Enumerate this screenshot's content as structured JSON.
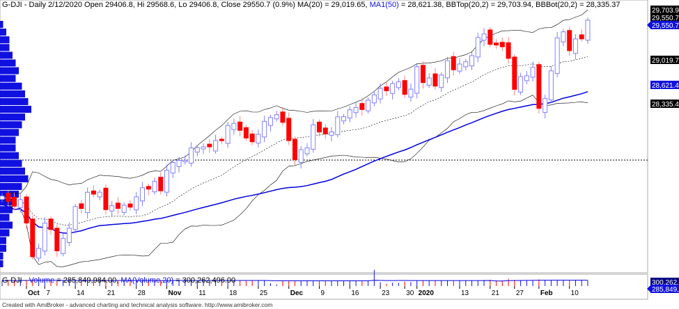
{
  "header": {
    "symbol": "G-DJI",
    "sep": " - ",
    "period": "Daily",
    "date": "2/12/2020",
    "open_label": "Open",
    "open": "29406.8",
    "hi_label": "Hi",
    "hi": "29568.6",
    "lo_label": "Lo",
    "lo": "29406.8",
    "close_label": "Close",
    "close": "29550.7",
    "change": "(0.9%)",
    "ma20": "MA(20) = 29,019.65,",
    "ma50": "MA1(50)",
    "ma50_val": "= 28,621.38,",
    "bbtop": "BBTop(20,2) = 29,703.94,",
    "bbbot": "BBBot(20,2) = 28,335.37"
  },
  "axis_labels": {
    "bbtop": "29,703.9",
    "close_dup": "29,550.7",
    "close": "29,550.7",
    "ma20": "29,019.7",
    "ma50": "28,621.4",
    "bbbot": "28,335.4"
  },
  "volume_header": {
    "symbol": "G-DJI",
    "sep": " - ",
    "volume_label": "Volume",
    "volume": "= 285,849,984.00,",
    "ma_label": "MA(Volume,20)",
    "ma": "= 300,262,496.00"
  },
  "volume_axis": {
    "ma": "300,262,496",
    "volume": "285,849,984"
  },
  "date_labels": [
    {
      "t": "Oct",
      "b": true,
      "i": 4
    },
    {
      "t": "7",
      "i": 7
    },
    {
      "t": "14",
      "i": 12
    },
    {
      "t": "21",
      "i": 17
    },
    {
      "t": "28",
      "i": 22
    },
    {
      "t": "Nov",
      "b": true,
      "i": 27
    },
    {
      "t": "11",
      "i": 32
    },
    {
      "t": "18",
      "i": 37
    },
    {
      "t": "25",
      "i": 42
    },
    {
      "t": "Dec",
      "b": true,
      "i": 47
    },
    {
      "t": "9",
      "i": 52
    },
    {
      "t": "16",
      "i": 57
    },
    {
      "t": "23",
      "i": 62
    },
    {
      "t": "30",
      "i": 66
    },
    {
      "t": "2020",
      "b": true,
      "i": 68
    },
    {
      "t": "13",
      "i": 75
    },
    {
      "t": "21",
      "i": 80
    },
    {
      "t": "27",
      "i": 84
    },
    {
      "t": "Feb",
      "b": true,
      "i": 88
    },
    {
      "t": "10",
      "i": 93
    }
  ],
  "footer": "Created with AmiBroker - advanced charting and technical analysis software. http://www.amibroker.com",
  "colors": {
    "up": "#1010e0",
    "down": "#ff0000",
    "ma50": "#0000e0",
    "bands": "#000000"
  },
  "chart_data": {
    "type": "candlestick",
    "closes": [
      26970,
      26891,
      26820,
      26917,
      26573,
      26079,
      26201,
      26573,
      26478,
      26165,
      26347,
      26497,
      26816,
      26787,
      27025,
      26997,
      27026,
      26770,
      26827,
      26788,
      26834,
      26806,
      26958,
      27091,
      27071,
      27186,
      27046,
      27347,
      27462,
      27492,
      27493,
      27675,
      27681,
      27691,
      27691,
      27784,
      27782,
      28005,
      28036,
      27934,
      27821,
      27766,
      27876,
      28066,
      28122,
      28164,
      28051,
      27783,
      27503,
      27650,
      27677,
      28015,
      27909,
      27882,
      27911,
      28132,
      28135,
      28235,
      28268,
      28239,
      28377,
      28455,
      28551,
      28515,
      28621,
      28645,
      28462,
      28538,
      28868,
      28635,
      28703,
      28583,
      28745,
      28957,
      28823,
      28907,
      28940,
      29030,
      29297,
      29348,
      29196,
      29186,
      29160,
      28990,
      28535,
      28723,
      28734,
      28859,
      28256,
      28400,
      28807,
      29291,
      29380,
      29103,
      29276,
      29276,
      29551
    ],
    "volume_rel": [
      1,
      1,
      1,
      1,
      1,
      1.2,
      1,
      1,
      1,
      0.9,
      1,
      1,
      1,
      0.9,
      1,
      1,
      1,
      1,
      1,
      1,
      1,
      1,
      1,
      1,
      1,
      1,
      1,
      1,
      1,
      1,
      1,
      1,
      1,
      1.1,
      1,
      1,
      1,
      1,
      1,
      1,
      1,
      1,
      1,
      1,
      0.5,
      0.3,
      0.9,
      1,
      1,
      1,
      1,
      1,
      1,
      1,
      1,
      1,
      1,
      1,
      1,
      1,
      1,
      2.9,
      0.7,
      0.4,
      0.6,
      0.6,
      0.8,
      0.7,
      1,
      1,
      1,
      1,
      1,
      1,
      1,
      1,
      1,
      1,
      1,
      1.1,
      1.1,
      1,
      1,
      1.3,
      1.1,
      1,
      1,
      1,
      1.2,
      1.1,
      1,
      1,
      1.1,
      1,
      1,
      1,
      1
    ],
    "volume_at_price": [
      1,
      2,
      3,
      3,
      4,
      5,
      6,
      5,
      7,
      8,
      9,
      10,
      8,
      7,
      6,
      5,
      5,
      6,
      7,
      8,
      9,
      7,
      6,
      5,
      4,
      3,
      4,
      3,
      2,
      2,
      1,
      1
    ],
    "price_range": [
      25900,
      29850
    ]
  }
}
